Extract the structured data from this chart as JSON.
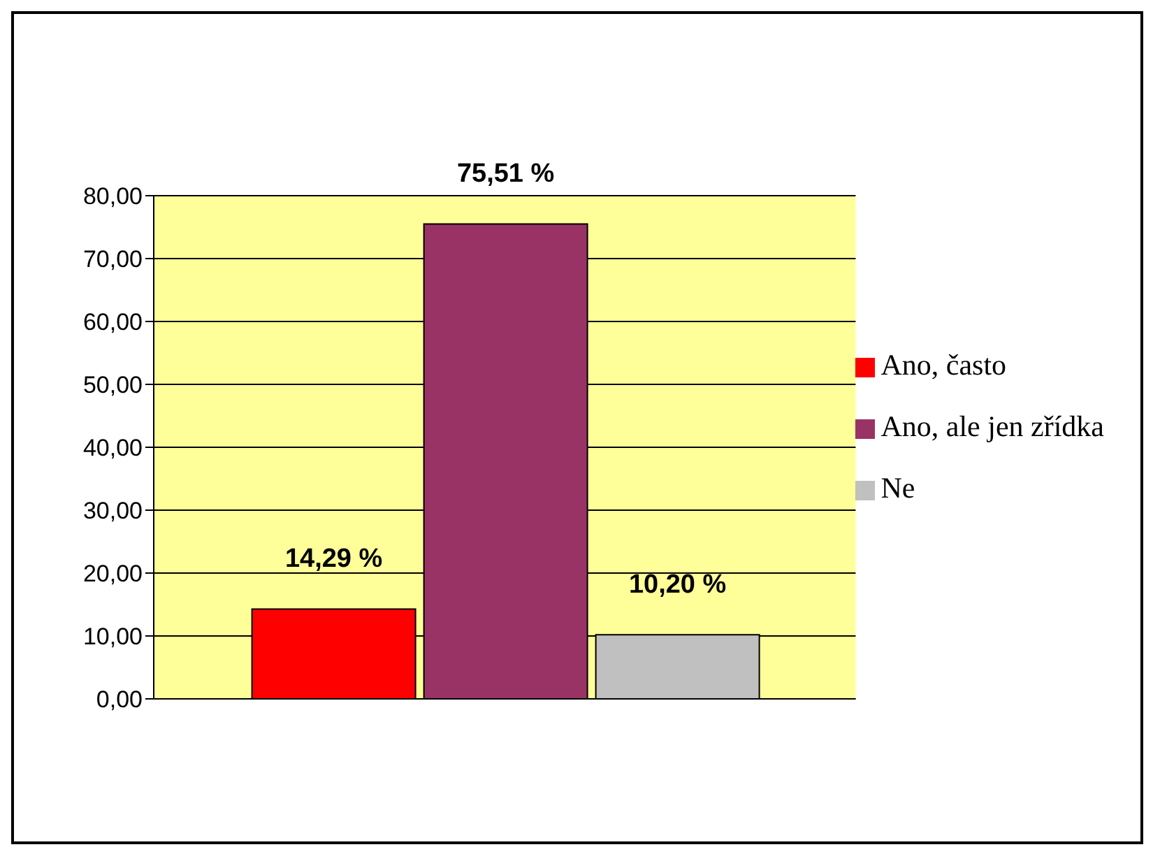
{
  "chart_data": {
    "type": "bar",
    "categories": [
      null
    ],
    "series": [
      {
        "name": "Ano, často",
        "color": "#ff0000",
        "values": [
          14.29
        ],
        "value_labels": [
          "14,29 %"
        ]
      },
      {
        "name": "Ano, ale jen zřídka",
        "color": "#993366",
        "values": [
          75.51
        ],
        "value_labels": [
          "75,51 %"
        ]
      },
      {
        "name": "Ne",
        "color": "#c0c0c0",
        "values": [
          10.2
        ],
        "value_labels": [
          "10,20 %"
        ]
      }
    ],
    "ylim": [
      0,
      80
    ],
    "yticks": [
      {
        "value": 0,
        "label": "0,00"
      },
      {
        "value": 10,
        "label": "10,00"
      },
      {
        "value": 20,
        "label": "20,00"
      },
      {
        "value": 30,
        "label": "30,00"
      },
      {
        "value": 40,
        "label": "40,00"
      },
      {
        "value": 50,
        "label": "50,00"
      },
      {
        "value": 60,
        "label": "60,00"
      },
      {
        "value": 70,
        "label": "70,00"
      },
      {
        "value": 80,
        "label": "80,00"
      }
    ],
    "grid": "y",
    "legend": "right"
  }
}
